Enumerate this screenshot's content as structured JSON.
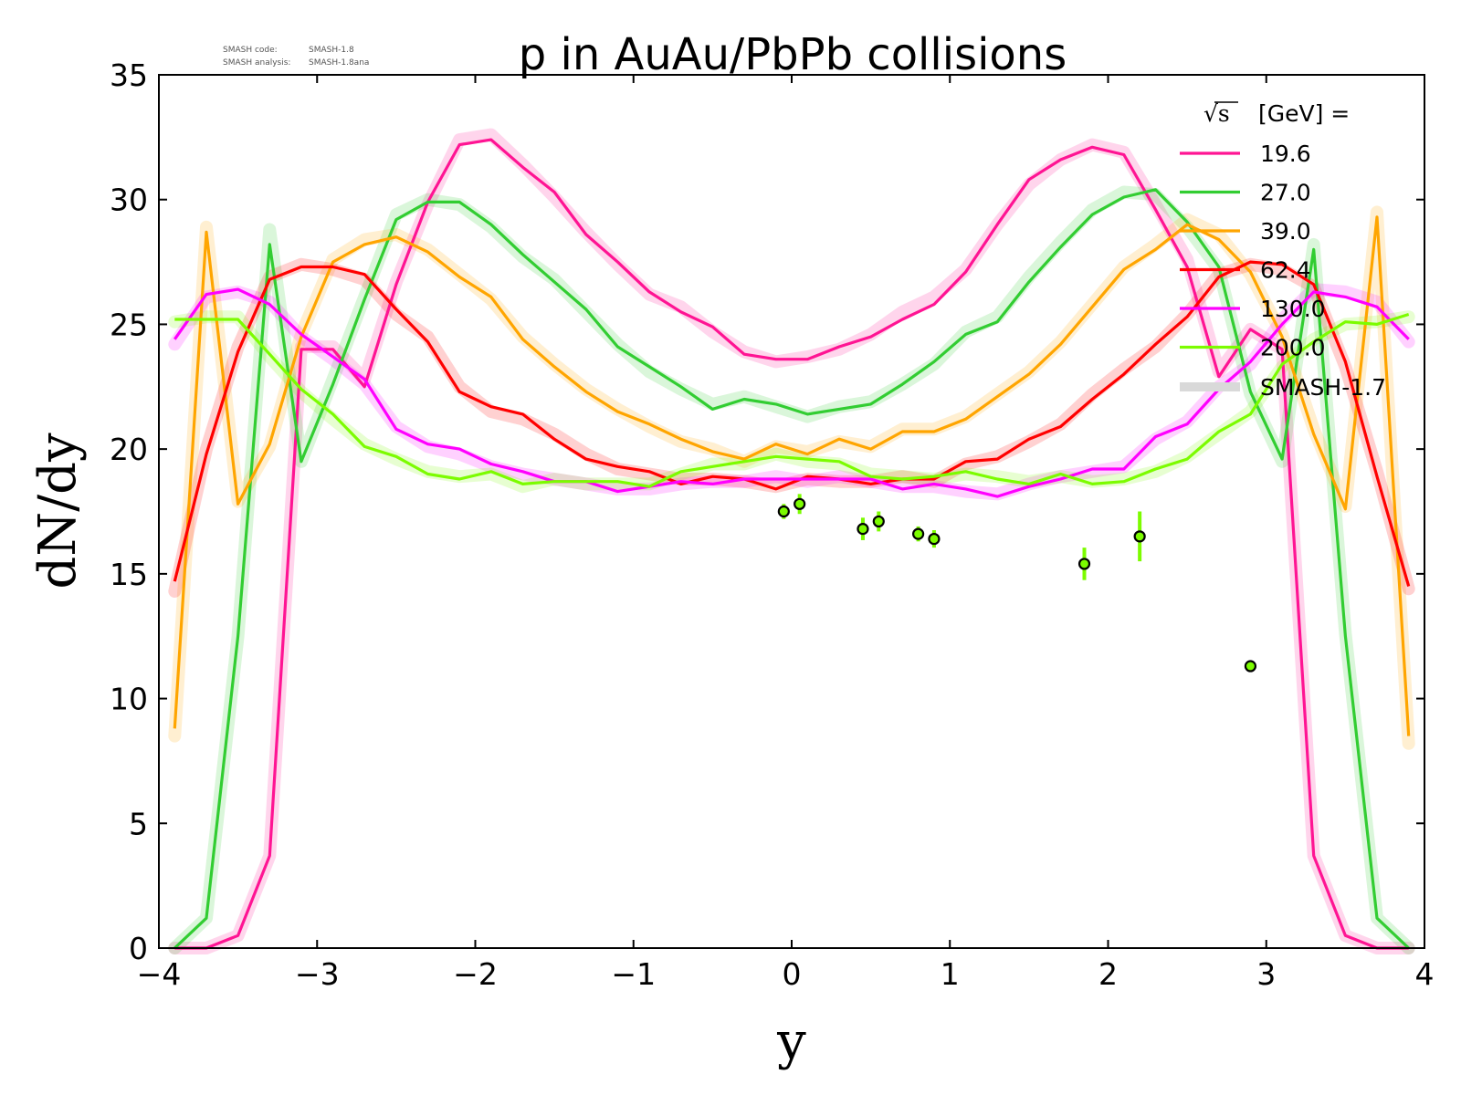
{
  "chart_data": {
    "type": "line",
    "title": "p in AuAu/PbPb collisions",
    "xlabel": "y",
    "ylabel": "dN/dy",
    "xlim": [
      -4,
      4
    ],
    "ylim": [
      0,
      35
    ],
    "xticks": [
      -4,
      -3,
      -2,
      -1,
      0,
      1,
      2,
      3,
      4
    ],
    "xtick_labels": [
      "−4",
      "−3",
      "−2",
      "−1",
      "0",
      "1",
      "2",
      "3",
      "4"
    ],
    "yticks": [
      0,
      5,
      10,
      15,
      20,
      25,
      30,
      35
    ],
    "ytick_labels": [
      "0",
      "5",
      "10",
      "15",
      "20",
      "25",
      "30",
      "35"
    ],
    "grid": false,
    "legend_placement": "top-right",
    "legend_title_sqrt": "√s",
    "legend_title_rest": "[GeV] =",
    "reference_label": "SMASH-1.7",
    "reference_color": "#d9d9d9",
    "stamp": {
      "line1_key": "SMASH code:",
      "line1_value": "SMASH-1.8",
      "line2_key": "SMASH analysis:",
      "line2_value": "SMASH-1.8ana"
    },
    "x": [
      -3.9,
      -3.7,
      -3.5,
      -3.3,
      -3.1,
      -2.9,
      -2.7,
      -2.5,
      -2.3,
      -2.1,
      -1.9,
      -1.7,
      -1.5,
      -1.3,
      -1.1,
      -0.9,
      -0.7,
      -0.5,
      -0.3,
      -0.1,
      0.1,
      0.3,
      0.5,
      0.7,
      0.9,
      1.1,
      1.3,
      1.5,
      1.7,
      1.9,
      2.1,
      2.3,
      2.5,
      2.7,
      2.9,
      3.1,
      3.3,
      3.5,
      3.7,
      3.9
    ],
    "series": [
      {
        "name": "19.6",
        "color": "#ff1493",
        "values": [
          0,
          0,
          0.5,
          3.7,
          24,
          24,
          22.5,
          26.6,
          29.9,
          32.2,
          32.4,
          31.3,
          30.3,
          28.6,
          27.5,
          26.3,
          25.5,
          24.9,
          23.8,
          23.6,
          23.6,
          24.1,
          24.5,
          25.2,
          25.8,
          27.1,
          29.0,
          30.8,
          31.6,
          32.1,
          31.8,
          29.6,
          27.3,
          22.9,
          24.8,
          24.0,
          3.7,
          0.5,
          0,
          0
        ]
      },
      {
        "name": "27.0",
        "color": "#32cd32",
        "values": [
          0,
          1.2,
          12.5,
          28.2,
          19.5,
          22.6,
          26.0,
          29.2,
          29.9,
          29.9,
          29.0,
          27.8,
          26.7,
          25.6,
          24.1,
          23.3,
          22.5,
          21.6,
          22.0,
          21.8,
          21.4,
          21.6,
          21.8,
          22.6,
          23.5,
          24.6,
          25.1,
          26.7,
          28.1,
          29.4,
          30.1,
          30.4,
          29.1,
          27.3,
          22.3,
          19.6,
          28.0,
          12.5,
          1.2,
          0
        ]
      },
      {
        "name": "39.0",
        "color": "#ffa500",
        "values": [
          8.8,
          28.7,
          17.8,
          20.2,
          24.5,
          27.5,
          28.2,
          28.5,
          27.9,
          26.9,
          26.1,
          24.4,
          23.3,
          22.3,
          21.5,
          21.0,
          20.4,
          19.9,
          19.6,
          20.2,
          19.8,
          20.4,
          20.0,
          20.7,
          20.7,
          21.2,
          22.1,
          23.0,
          24.2,
          25.7,
          27.2,
          28.0,
          29.0,
          28.4,
          27.1,
          24.5,
          20.6,
          17.6,
          29.3,
          8.5
        ]
      },
      {
        "name": "62.4",
        "color": "#ff0000",
        "values": [
          14.7,
          19.8,
          23.9,
          26.8,
          27.3,
          27.3,
          27.0,
          25.6,
          24.3,
          22.3,
          21.7,
          21.4,
          20.4,
          19.6,
          19.3,
          19.1,
          18.6,
          18.9,
          18.8,
          18.4,
          18.9,
          18.8,
          18.6,
          18.8,
          18.8,
          19.5,
          19.6,
          20.4,
          20.9,
          22.0,
          23.0,
          24.2,
          25.3,
          26.9,
          27.5,
          27.4,
          26.6,
          23.5,
          18.9,
          14.5
        ]
      },
      {
        "name": "130.0",
        "color": "#ff00ff",
        "values": [
          24.4,
          26.2,
          26.4,
          25.8,
          24.6,
          23.7,
          22.8,
          20.8,
          20.2,
          20.0,
          19.4,
          19.1,
          18.7,
          18.7,
          18.3,
          18.5,
          18.7,
          18.6,
          18.8,
          18.8,
          18.8,
          18.8,
          18.8,
          18.4,
          18.6,
          18.4,
          18.1,
          18.5,
          18.8,
          19.2,
          19.2,
          20.5,
          21.0,
          22.4,
          23.5,
          25.0,
          26.3,
          26.1,
          25.7,
          24.4
        ]
      },
      {
        "name": "200.0",
        "color": "#7cfc00",
        "values": [
          25.2,
          25.2,
          25.2,
          23.8,
          22.4,
          21.4,
          20.1,
          19.7,
          19.0,
          18.8,
          19.1,
          18.6,
          18.7,
          18.7,
          18.7,
          18.5,
          19.1,
          19.3,
          19.5,
          19.7,
          19.6,
          19.5,
          18.9,
          18.8,
          18.9,
          19.1,
          18.8,
          18.6,
          19.0,
          18.6,
          18.7,
          19.2,
          19.6,
          20.7,
          21.4,
          23.4,
          24.3,
          25.1,
          25.0,
          25.4
        ]
      }
    ],
    "reference_series": [
      {
        "name": "SMASH-1.7",
        "series_ref": "19.6",
        "values": [
          0,
          0,
          0.5,
          3.7,
          24.1,
          24.1,
          22.8,
          26.7,
          29.8,
          32.4,
          32.6,
          31.4,
          30.1,
          28.7,
          27.4,
          26.2,
          25.7,
          24.7,
          23.9,
          23.5,
          23.7,
          24.0,
          24.6,
          25.5,
          26.1,
          27.2,
          29.0,
          30.6,
          31.6,
          32.2,
          31.9,
          29.8,
          27.6,
          23.1,
          24.8,
          24.0,
          3.7,
          0.5,
          0,
          0
        ]
      },
      {
        "name": "SMASH-1.7",
        "series_ref": "27.0",
        "values": [
          0,
          1.2,
          12.5,
          28.8,
          19.5,
          22.8,
          26.1,
          29.4,
          30.0,
          29.8,
          28.9,
          27.7,
          26.8,
          25.5,
          24.2,
          23.1,
          22.4,
          21.8,
          22.1,
          21.7,
          21.3,
          21.7,
          21.9,
          22.6,
          23.4,
          24.7,
          25.3,
          26.9,
          28.3,
          29.6,
          30.3,
          30.2,
          28.9,
          27.2,
          22.2,
          19.5,
          28.2,
          12.6,
          1.2,
          0
        ]
      },
      {
        "name": "SMASH-1.7",
        "series_ref": "39.0",
        "values": [
          8.5,
          28.9,
          17.9,
          20.1,
          24.6,
          27.6,
          28.4,
          28.6,
          28.0,
          27.0,
          26.0,
          24.5,
          23.4,
          22.4,
          21.6,
          20.9,
          20.3,
          20.0,
          19.5,
          20.1,
          19.9,
          20.3,
          20.1,
          20.8,
          20.8,
          21.3,
          22.2,
          23.1,
          24.3,
          25.8,
          27.3,
          28.2,
          29.2,
          28.6,
          27.0,
          24.6,
          20.8,
          17.7,
          29.5,
          8.2
        ]
      },
      {
        "name": "SMASH-1.7",
        "series_ref": "62.4",
        "values": [
          14.3,
          20.0,
          24.1,
          26.9,
          27.4,
          27.2,
          26.8,
          25.4,
          24.5,
          22.5,
          21.5,
          21.2,
          20.6,
          19.8,
          19.2,
          19.0,
          18.8,
          18.8,
          18.7,
          18.5,
          18.8,
          18.7,
          18.7,
          18.9,
          18.7,
          19.4,
          19.7,
          20.3,
          21.0,
          22.2,
          23.2,
          24.1,
          25.4,
          27.0,
          27.4,
          27.2,
          26.5,
          23.3,
          19.1,
          14.4
        ]
      },
      {
        "name": "SMASH-1.7",
        "series_ref": "130.0",
        "values": [
          24.2,
          26.1,
          26.3,
          25.9,
          24.5,
          23.6,
          22.6,
          20.9,
          20.1,
          19.8,
          19.3,
          19.0,
          18.8,
          18.6,
          18.4,
          18.4,
          18.6,
          18.7,
          18.7,
          18.9,
          18.7,
          18.9,
          18.7,
          18.5,
          18.5,
          18.3,
          18.2,
          18.6,
          18.9,
          19.1,
          19.3,
          20.4,
          21.1,
          22.5,
          23.4,
          25.2,
          26.4,
          26.3,
          25.9,
          24.3
        ]
      },
      {
        "name": "SMASH-1.7",
        "series_ref": "200.0",
        "values": [
          25.1,
          25.3,
          25.3,
          23.7,
          22.3,
          21.2,
          20.2,
          19.6,
          19.1,
          18.9,
          19.0,
          18.5,
          18.8,
          18.6,
          18.6,
          18.6,
          19.0,
          19.4,
          19.4,
          19.8,
          19.5,
          19.4,
          19.0,
          18.9,
          18.8,
          19.0,
          18.9,
          18.7,
          18.9,
          18.7,
          18.8,
          19.1,
          19.7,
          20.6,
          21.5,
          23.3,
          24.4,
          25.0,
          25.1,
          25.3
        ]
      }
    ],
    "measured_points": {
      "color": "#7cfc00",
      "edge_color": "#000000",
      "points": [
        {
          "x": -0.05,
          "y": 17.5,
          "err": 0.3
        },
        {
          "x": 0.05,
          "y": 17.8,
          "err": 0.4
        },
        {
          "x": 0.45,
          "y": 16.8,
          "err": 0.45
        },
        {
          "x": 0.55,
          "y": 17.1,
          "err": 0.4
        },
        {
          "x": 0.8,
          "y": 16.6,
          "err": 0.3
        },
        {
          "x": 0.9,
          "y": 16.4,
          "err": 0.35
        },
        {
          "x": 1.85,
          "y": 15.4,
          "err": 0.65
        },
        {
          "x": 2.2,
          "y": 16.5,
          "err": 1.0
        },
        {
          "x": 2.9,
          "y": 11.3,
          "err": 0.2
        }
      ]
    }
  }
}
